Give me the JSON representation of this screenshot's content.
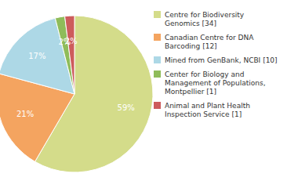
{
  "chart_data": {
    "type": "pie",
    "categories": [
      "Centre for Biodiversity\nGenomics [34]",
      "Canadian Centre for DNA\nBarcoding [12]",
      "Mined from GenBank, NCBI [10]",
      "Center for Biology and\nManagement of Populations,\nMontpellier [1]",
      "Animal and Plant Health\nInspection Service [1]"
    ],
    "values": [
      59,
      21,
      17,
      2,
      2
    ],
    "value_labels": [
      "59%",
      "21%",
      "17%",
      "2%",
      "2%"
    ],
    "colors": [
      "#d4dc8a",
      "#f4a460",
      "#add8e6",
      "#8fbc5a",
      "#cd5c5c"
    ],
    "data_labels": true,
    "legend": "right"
  }
}
